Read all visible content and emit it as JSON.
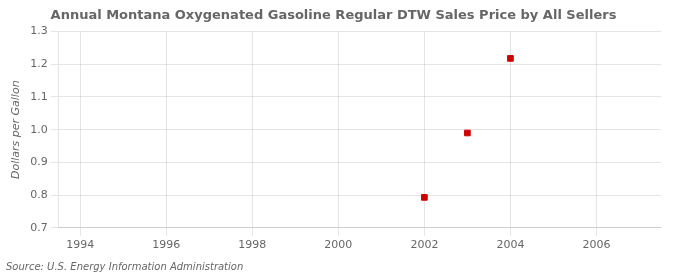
{
  "chart_data": {
    "type": "scatter",
    "title": "Annual Montana Oxygenated Gasoline Regular DTW Sales Price by All Sellers",
    "y_label": "Dollars per Gallon",
    "source": "Source: U.S. Energy Information Administration",
    "x": [
      2002,
      2003,
      2004
    ],
    "values": [
      0.793,
      0.99,
      1.218
    ],
    "color": "#cc0000",
    "marker": "square",
    "xlim": [
      1993.5,
      2007.5
    ],
    "xticks": [
      1994,
      1996,
      1998,
      2000,
      2002,
      2004,
      2006
    ],
    "ylim": [
      0.7,
      1.3
    ],
    "yticks": [
      0.7,
      0.8,
      0.9,
      {
        "value": 1.0,
        "label": "1.0"
      },
      1.1,
      1.2,
      1.3
    ],
    "grid": true
  }
}
